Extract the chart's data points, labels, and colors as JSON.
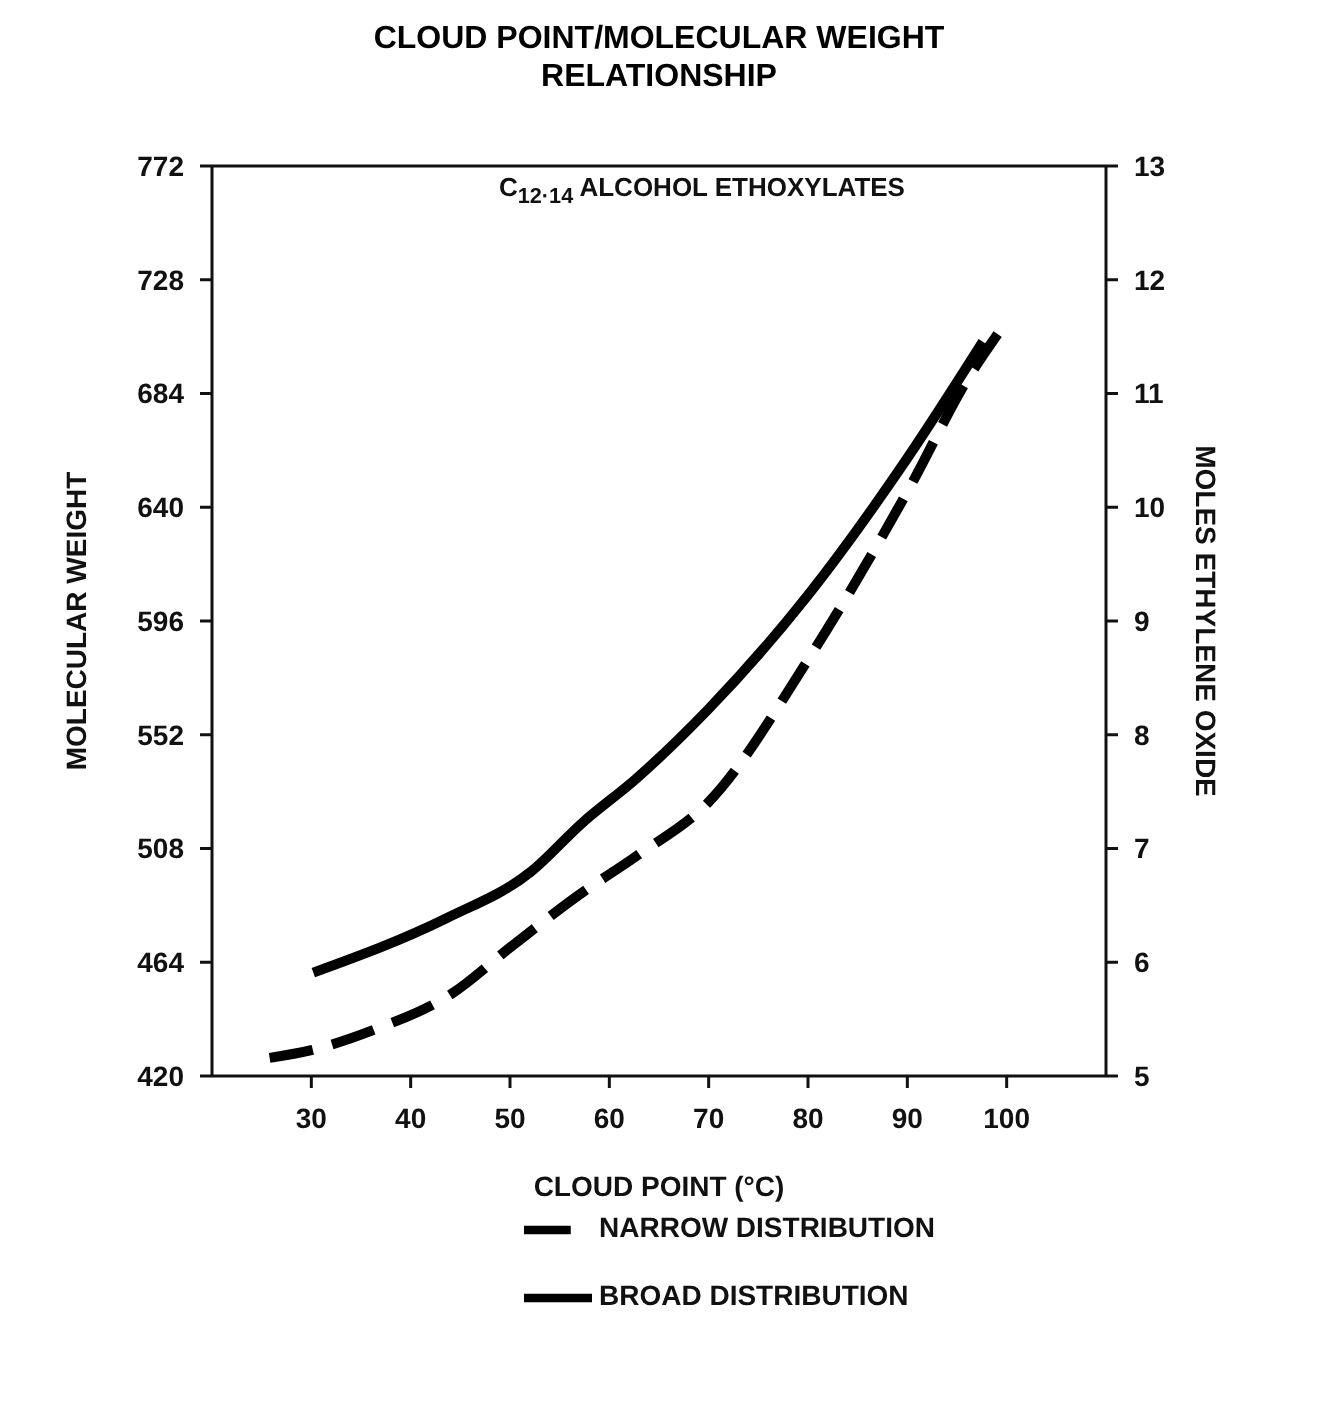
{
  "chart_data": {
    "type": "line",
    "title": "CLOUD POINT/MOLECULAR WEIGHT RELATIONSHIP",
    "xlabel": "CLOUD POINT (°C)",
    "ylabel": "MOLECULAR WEIGHT",
    "y2label": "MOLES ETHYLENE OXIDE",
    "annotations": [
      "C$_{12·14}$ ALCOHOL ETHOXYLATES"
    ],
    "xlim": [
      20,
      110
    ],
    "xticks": [
      30,
      40,
      50,
      60,
      70,
      80,
      90,
      100
    ],
    "ylim": [
      420,
      772
    ],
    "yticks": [
      420,
      464,
      508,
      552,
      596,
      640,
      684,
      728,
      772
    ],
    "y2lim": [
      5,
      13
    ],
    "y2ticks": [
      5,
      6,
      7,
      8,
      9,
      10,
      11,
      12,
      13
    ],
    "legend": "bottom",
    "grid": false,
    "marker": "none",
    "series": [
      {
        "name": "NARROW DISTRIBUTION",
        "color": "#000000",
        "line_style": "dashed",
        "x": [
          25.8,
          30,
          36.4,
          44.2,
          50.1,
          57.3,
          62.7,
          70,
          80,
          90,
          96.3,
          99.1
        ],
        "values": [
          427,
          430,
          438,
          452,
          470,
          491,
          505,
          526,
          581,
          646,
          691,
          707
        ]
      },
      {
        "name": "BROAD DISTRIBUTION",
        "color": "#000000",
        "line_style": "solid",
        "x": [
          30.2,
          43.6,
          52.1,
          57.3,
          62.7,
          70,
          80,
          90,
          97.6
        ],
        "values": [
          460,
          481,
          499,
          518,
          535,
          562,
          606,
          659,
          704
        ]
      }
    ]
  }
}
